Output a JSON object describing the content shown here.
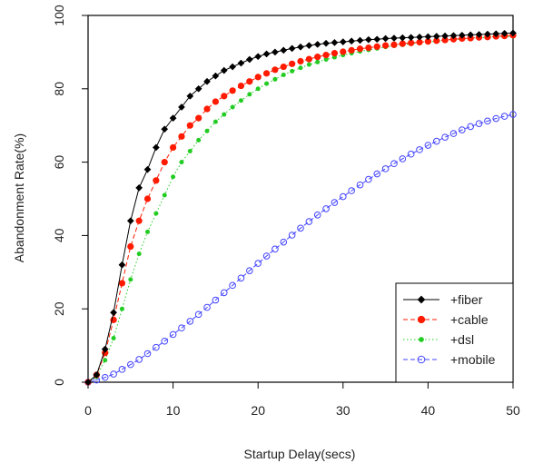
{
  "chart_data": {
    "type": "line",
    "xlabel": "Startup Delay(secs)",
    "ylabel": "Abandonment Rate(%)",
    "xlim": [
      0,
      50
    ],
    "ylim": [
      0,
      100
    ],
    "x_ticks": [
      "0",
      "10",
      "20",
      "30",
      "40",
      "50"
    ],
    "y_ticks": [
      "0",
      "20",
      "40",
      "60",
      "80",
      "100"
    ],
    "grid": false,
    "legend_position": "bottom-right",
    "x": [
      0,
      1,
      2,
      3,
      4,
      5,
      6,
      7,
      8,
      9,
      10,
      11,
      12,
      13,
      14,
      15,
      16,
      17,
      18,
      19,
      20,
      21,
      22,
      23,
      24,
      25,
      26,
      27,
      28,
      29,
      30,
      31,
      32,
      33,
      34,
      35,
      36,
      37,
      38,
      39,
      40,
      41,
      42,
      43,
      44,
      45,
      46,
      47,
      48,
      49,
      50
    ],
    "series": [
      {
        "name": "+fiber",
        "color": "#000000",
        "marker": "filled-diamond",
        "line": "solid",
        "values": [
          0,
          2,
          9,
          19,
          32,
          44,
          53,
          58,
          64,
          69,
          72,
          75,
          78,
          80,
          82,
          83.5,
          85,
          86,
          87,
          88,
          88.8,
          89.5,
          90,
          90.5,
          91,
          91.4,
          91.8,
          92.1,
          92.4,
          92.6,
          92.8,
          93,
          93.2,
          93.4,
          93.5,
          93.7,
          93.8,
          93.9,
          94,
          94.1,
          94.2,
          94.3,
          94.4,
          94.5,
          94.6,
          94.7,
          94.8,
          94.9,
          95,
          95.1,
          95.2
        ]
      },
      {
        "name": "+cable",
        "color": "#ff1a00",
        "marker": "filled-circle",
        "line": "dashed",
        "values": [
          0,
          2,
          8,
          17,
          27,
          37,
          44,
          50,
          55,
          60,
          64,
          67,
          70,
          72,
          74.5,
          76.5,
          78,
          79.5,
          80.8,
          82,
          83.2,
          84.2,
          85.2,
          86,
          86.8,
          87.5,
          88.1,
          88.7,
          89.2,
          89.7,
          90.1,
          90.5,
          90.9,
          91.2,
          91.5,
          91.8,
          92,
          92.3,
          92.5,
          92.7,
          92.9,
          93.1,
          93.3,
          93.5,
          93.7,
          93.8,
          94,
          94.1,
          94.3,
          94.4,
          94.6
        ]
      },
      {
        "name": "+dsl",
        "color": "#22cc22",
        "marker": "filled-circle-small",
        "line": "dotted",
        "values": [
          0,
          1.5,
          6,
          12,
          20,
          28,
          35,
          41,
          46,
          51,
          56,
          60,
          63,
          66,
          68.5,
          71,
          73,
          75,
          76.8,
          78.5,
          80,
          81.4,
          82.6,
          83.8,
          84.8,
          85.7,
          86.6,
          87.3,
          88,
          88.6,
          89.2,
          89.7,
          90.2,
          90.6,
          91,
          91.4,
          91.7,
          92,
          92.3,
          92.5,
          92.8,
          93,
          93.2,
          93.4,
          93.6,
          93.7,
          93.9,
          94,
          94.1,
          94.2,
          94.3
        ]
      },
      {
        "name": "+mobile",
        "color": "#4444ff",
        "marker": "open-circle",
        "line": "dashed",
        "values": [
          0,
          0.6,
          1.3,
          2.2,
          3.5,
          4.8,
          6.2,
          7.8,
          9.5,
          11.2,
          13,
          14.8,
          16.6,
          18.5,
          20.4,
          22.4,
          24.4,
          26.4,
          28.4,
          30.4,
          32.4,
          34.4,
          36.3,
          38.2,
          40.1,
          42,
          43.8,
          45.6,
          47.3,
          49,
          50.6,
          52.2,
          53.8,
          55.3,
          56.8,
          58.2,
          59.6,
          60.9,
          62.2,
          63.4,
          64.6,
          65.7,
          66.8,
          67.8,
          68.8,
          69.7,
          70.5,
          71.2,
          71.9,
          72.5,
          73
        ]
      }
    ]
  }
}
